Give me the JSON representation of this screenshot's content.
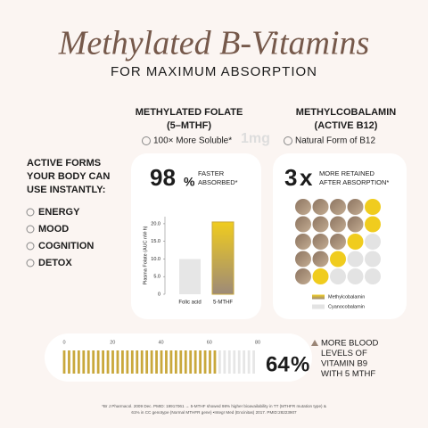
{
  "header": {
    "title": "Methylated B-Vitamins",
    "subtitle": "FOR MAXIMUM ABSORPTION"
  },
  "watermark": "1mg",
  "benefits": {
    "heading": [
      "ACTIVE FORMS",
      "YOUR BODY CAN",
      "USE INSTANTLY:"
    ],
    "items": [
      "ENERGY",
      "MOOD",
      "COGNITION",
      "DETOX"
    ]
  },
  "folate": {
    "heading": [
      "METHYLATED FOLATE",
      "(5–MTHF)"
    ],
    "badge": "100× More Soluble*",
    "stat": {
      "value": 98,
      "unit": "%",
      "text": [
        "FASTER",
        "ABSORBED*"
      ]
    },
    "chart_data": {
      "type": "bar",
      "y_label": "Plasma Folate (AUC nM·h)",
      "categories": [
        "Folic acid",
        "5-MTHF"
      ],
      "values": [
        10,
        20.5
      ],
      "colors": [
        "#e6e6e6",
        "#c9a83c"
      ],
      "ylim": [
        0,
        22
      ],
      "yticks": [
        0,
        {
          "value": 5,
          "label": "5.0"
        },
        {
          "value": 10,
          "label": "10.0"
        },
        {
          "value": 15,
          "label": "15.0"
        },
        {
          "value": 20,
          "label": "20.0"
        }
      ]
    }
  },
  "cobalamin": {
    "heading": [
      "METHYLCOBALAMIN",
      "(ACTIVE B12)"
    ],
    "badge": "Natural Form of B12",
    "stat": {
      "value": 3,
      "unit": "x",
      "text": [
        "MORE RETAINED",
        "AFTER ABSORPTION*"
      ]
    },
    "legend": [
      {
        "name": "Methylcobalamin",
        "color": "#a8917a"
      },
      {
        "name": "Cyanocobalamin",
        "color": "#e3e3e3"
      }
    ]
  },
  "blood": {
    "chart_data": {
      "type": "progress",
      "value": 64,
      "xlim": [
        0,
        80
      ],
      "xticks": [
        0,
        20,
        40,
        60,
        80
      ],
      "color": "#c9a83c",
      "track_color": "#e6e6e6"
    },
    "stat": {
      "value": 64,
      "unit": "%"
    },
    "text": [
      "MORE BLOOD",
      "LEVELS OF",
      "VITAMIN B9",
      "WITH 5 MTHF"
    ]
  },
  "footnote": [
    "*Br J Pharmacol. 2009 Dec. PMID: 19917061 → 5-MTHF showed 98% higher bioavailability in TT (MTHFR mutation type) &",
    "61% in CC genotype (Normal MTHFR gene) •Integr Med (Encinitas) 2017. PMID:28223907"
  ]
}
